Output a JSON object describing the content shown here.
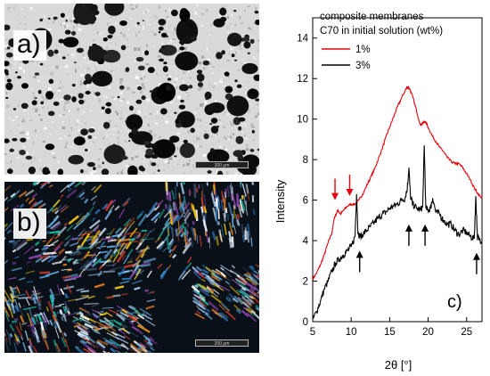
{
  "panels": {
    "a": {
      "label": "a)",
      "scale_label": "200 μm"
    },
    "b": {
      "label": "b)",
      "scale_label": "200 μm"
    },
    "c": {
      "label": "c)"
    }
  },
  "chart_data": {
    "type": "line",
    "xlabel": "2θ [°]",
    "ylabel": "Intensity",
    "xlim": [
      5,
      27
    ],
    "ylim": [
      0,
      15
    ],
    "xticks": [
      5,
      10,
      15,
      20,
      25
    ],
    "yticks": [
      0,
      2,
      4,
      6,
      8,
      10,
      12,
      14
    ],
    "grid": false,
    "legend": {
      "title_lines": [
        "composite membranes",
        "C70 in initial solution (wt%)"
      ],
      "placement": "top-left"
    },
    "series": [
      {
        "name": "1%",
        "color": "#e8000b",
        "x": [
          5.0,
          5.5,
          6.0,
          6.5,
          7.0,
          7.5,
          7.8,
          8.0,
          8.3,
          8.6,
          9.0,
          9.5,
          10.0,
          10.5,
          11.0,
          11.5,
          12.0,
          12.5,
          13.0,
          13.5,
          14.0,
          14.5,
          15.0,
          15.5,
          16.0,
          16.5,
          17.0,
          17.3,
          17.6,
          18.0,
          18.5,
          19.0,
          19.3,
          19.6,
          20.0,
          20.5,
          21.0,
          21.5,
          22.0,
          22.5,
          23.0,
          23.5,
          24.0,
          24.5,
          25.0,
          25.5,
          26.0,
          26.5,
          27.0
        ],
        "values": [
          2.1,
          2.4,
          2.8,
          3.3,
          3.9,
          4.4,
          5.1,
          5.3,
          5.5,
          5.3,
          5.5,
          5.7,
          5.8,
          5.8,
          6.0,
          6.3,
          6.7,
          7.1,
          7.5,
          8.0,
          8.5,
          9.1,
          9.6,
          10.1,
          10.6,
          11.0,
          11.4,
          11.6,
          11.5,
          11.1,
          10.4,
          9.7,
          9.8,
          9.9,
          9.6,
          9.2,
          8.9,
          8.6,
          8.4,
          8.1,
          7.9,
          7.8,
          7.8,
          7.6,
          7.3,
          7.0,
          6.6,
          6.3,
          6.1
        ]
      },
      {
        "name": "3%",
        "color": "#000000",
        "x": [
          5.0,
          5.5,
          6.0,
          6.5,
          7.0,
          7.5,
          8.0,
          8.5,
          9.0,
          9.5,
          10.0,
          10.5,
          10.7,
          10.9,
          11.2,
          11.5,
          12.0,
          12.5,
          13.0,
          13.5,
          14.0,
          14.5,
          15.0,
          15.5,
          16.0,
          16.5,
          17.0,
          17.3,
          17.5,
          17.7,
          18.0,
          18.5,
          19.0,
          19.3,
          19.5,
          19.7,
          20.0,
          20.3,
          20.6,
          21.0,
          21.5,
          22.0,
          22.5,
          23.0,
          23.5,
          24.0,
          24.5,
          25.0,
          25.5,
          26.0,
          26.2,
          26.4,
          26.6,
          27.0
        ],
        "values": [
          0.1,
          0.5,
          1.0,
          1.6,
          2.0,
          2.5,
          2.9,
          3.1,
          3.3,
          3.5,
          3.7,
          4.2,
          6.3,
          4.3,
          4.2,
          4.3,
          4.5,
          4.7,
          4.9,
          5.1,
          5.3,
          5.4,
          5.6,
          5.7,
          5.8,
          6.0,
          6.1,
          6.6,
          7.6,
          6.2,
          5.8,
          5.6,
          5.5,
          5.7,
          8.7,
          5.6,
          5.5,
          5.6,
          6.1,
          5.4,
          5.3,
          5.0,
          4.8,
          4.8,
          4.5,
          4.3,
          4.5,
          4.4,
          4.2,
          4.1,
          6.2,
          4.2,
          4.1,
          4.0
        ]
      }
    ],
    "annotations": [
      {
        "type": "arrow-down",
        "color": "#e8000b",
        "x": 7.9,
        "y_tip": 6.0
      },
      {
        "type": "arrow-down",
        "color": "#e8000b",
        "x": 9.8,
        "y_tip": 6.2
      },
      {
        "type": "arrow-up",
        "color": "#000000",
        "x": 11.1,
        "y_tip": 3.5
      },
      {
        "type": "arrow-up",
        "color": "#000000",
        "x": 17.5,
        "y_tip": 4.8
      },
      {
        "type": "arrow-up",
        "color": "#000000",
        "x": 19.6,
        "y_tip": 4.8
      },
      {
        "type": "arrow-up",
        "color": "#000000",
        "x": 26.3,
        "y_tip": 3.4
      }
    ]
  }
}
